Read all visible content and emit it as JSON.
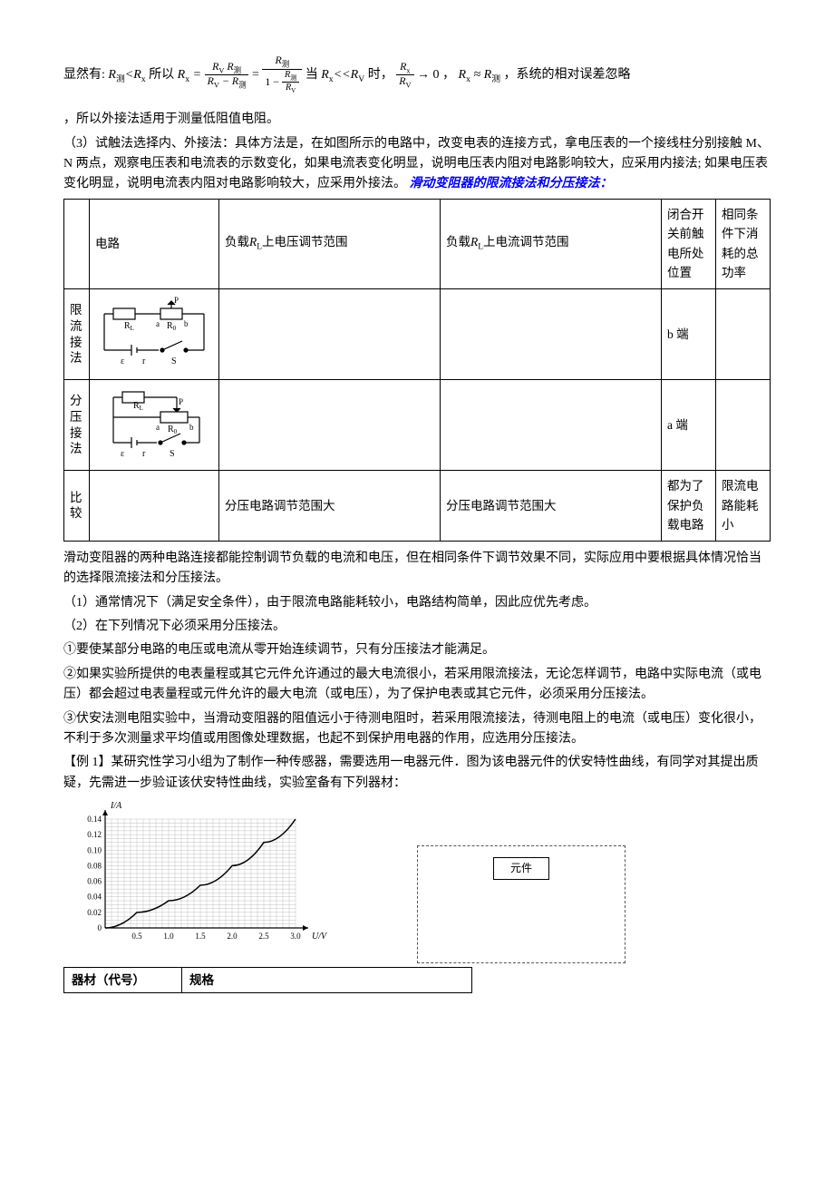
{
  "eq": {
    "pre": "显然有:",
    "cond": "R测<Rx",
    "so": "所以",
    "rx": "Rx =",
    "frac1_num": "RV R测",
    "frac1_den": "RV − R测",
    "eq2": "=",
    "frac2_num": "R测",
    "frac2_den_top": "1 −",
    "frac2_den_num": "R测",
    "frac2_den_den": "RV",
    "when": "当",
    "cond2": "Rx<<RV",
    "when2": "时，",
    "frac3_num": "Rx",
    "frac3_den": "RV",
    "to": "→ 0 ，",
    "approx": "Rx ≈ R测",
    "tail": "，系统的相对误差忽略"
  },
  "p1": "，所以外接法适用于测量低阻值电阻。",
  "p2": "（3）试触法选择内、外接法：具体方法是，在如图所示的电路中，改变电表的连接方式，拿电压表的一个接线柱分别接触 M、N 两点，观察电压表和电流表的示数变化，如果电流表变化明显，说明电压表内阻对电路影响较大，应采用内接法; 如果电压表变化明显，说明电流表内阻对电路影响较大，应采用外接法。",
  "h1": "滑动变阻器的限流接法和分压接法：",
  "table": {
    "headers": {
      "c1": "电路",
      "c2_pre": "负载",
      "c2_mid": "RL",
      "c2_post": "上电压调节范围",
      "c3_pre": "负载",
      "c3_mid": "RL",
      "c3_post": "上电流调节范围",
      "c4": "闭合开关前触电所处位置",
      "c5": "相同条件下消耗的总功率"
    },
    "rows": {
      "r1_label": "限流接法",
      "r1_pos": "b 端",
      "r2_label": "分压接法",
      "r2_pos": "a 端",
      "r3_label": "比较",
      "r3_c2": "分压电路调节范围大",
      "r3_c3": "分压电路调节范围大",
      "r3_c4": "都为了保护负载电路",
      "r3_c5": "限流电路能耗小"
    },
    "circuit_labels": {
      "RL": "RL",
      "P": "P",
      "a": "a",
      "R0": "R0",
      "b": "b",
      "eps": "ε",
      "r": "r",
      "S": "S"
    }
  },
  "p3": "滑动变阻器的两种电路连接都能控制调节负载的电流和电压，但在相同条件下调节效果不同，实际应用中要根据具体情况恰当的选择限流接法和分压接法。",
  "p4": "（1）通常情况下（满足安全条件），由于限流电路能耗较小，电路结构简单，因此应优先考虑。",
  "p5": "（2）在下列情况下必须采用分压接法。",
  "p6": "①要使某部分电路的电压或电流从零开始连续调节，只有分压接法才能满足。",
  "p7": "②如果实验所提供的电表量程或其它元件允许通过的最大电流很小，若采用限流接法，无论怎样调节，电路中实际电流（或电压）都会超过电表量程或元件允许的最大电流（或电压），为了保护电表或其它元件，必须采用分压接法。",
  "p8": "③伏安法测电阻实验中，当滑动变阻器的阻值远小于待测电阻时，若采用限流接法，待测电阻上的电流（或电压）变化很小，不利于多次测量求平均值或用图像处理数据，也起不到保护用电器的作用，应选用分压接法。",
  "p9": "【例 1】某研究性学习小组为了制作一种传感器，需要选用一电器元件．图为该电器元件的伏安特性曲线，有同学对其提出质疑，先需进一步验证该伏安特性曲线，实验室备有下列器材：",
  "chart": {
    "ylabel": "I/A",
    "xlabel": "U/V",
    "yvals": [
      "0.14",
      "0.12",
      "0.10",
      "0.08",
      "0.06",
      "0.04",
      "0.02",
      "0"
    ],
    "xvals": [
      "0",
      "0.5",
      "1.0",
      "1.5",
      "2.0",
      "2.5",
      "3.0"
    ],
    "curve_points": [
      [
        0,
        0
      ],
      [
        0.5,
        0.02
      ],
      [
        1.0,
        0.035
      ],
      [
        1.5,
        0.055
      ],
      [
        2.0,
        0.08
      ],
      [
        2.5,
        0.11
      ],
      [
        3.0,
        0.14
      ]
    ],
    "grid_step_x": 0.1,
    "grid_step_y": 0.005,
    "colors": {
      "axis": "#000000",
      "grid": "#888888",
      "curve": "#000000",
      "bg": "#ffffff"
    }
  },
  "component_label": "元件",
  "table2": {
    "h1": "器材（代号）",
    "h2": "规格"
  }
}
